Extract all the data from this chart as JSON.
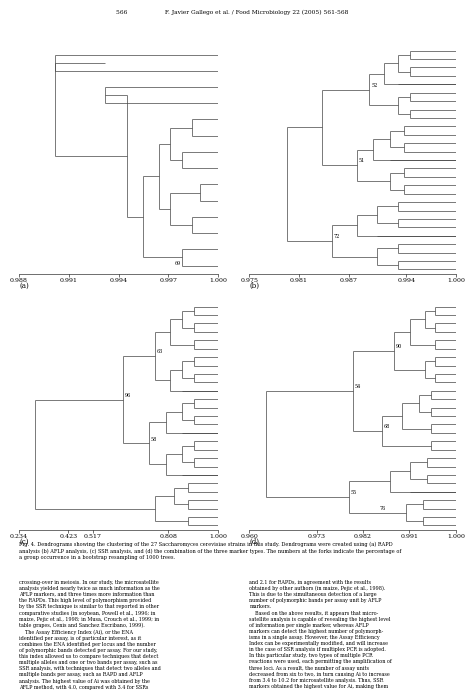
{
  "title_text": "566                    F. Javier Gallego et al. / Food Microbiology 22 (2005) 561-568",
  "caption": "Fig. 4. Dendrograms showing the clustering of the 27 Saccharomyces cerevisiae strains in this study. Dendrograms were created using (a) RAPD\nanalysis (b) AFLP analysis, (c) SSR analysis, and (d) the combination of the three marker types. The numbers at the forks indicate the percentage of\na group occurrence in a bootstrap resampling of 1000 trees.",
  "body_text_left": "crossing-over in meiosis. In our study, the microsatellite\nanalysis yielded nearly twice as much information as the\nAFLP markers, and three times more information than\nthe RAPDs. This high level of polymorphism provided\nby the SSR technique is similar to that reported in other\ncomparative studies (in soybean, Powell et al., 1996; in\nmaize, Pejic et al., 1998; in Musa, Crouch et al., 1999; in\ntable grapes, Cenis and Sanchez Escribano, 1999).\n    The Assay Efficiency Index (Ai), or the ENA\nidentified per assay, is of particular interest, as it\ncombines the ENA identified per locus and the number\nof polymorphic bands detected per assay. For our study,\nthis index allowed us to compare techniques that detect\nmultiple alleles and one or two bands per assay, such as\nSSR analysis, with techniques that detect two alleles and\nmultiple bands per assay, such as RAPD and AFLP\nanalysis. The highest value of Ai was obtained by the\nAFLP method, with 4.0, compared with 3.4 for SSRs",
  "body_text_right": "and 2.1 for RAPDs, in agreement with the results\nobtained by other authors (in maize, Pejic et al., 1998).\nThis is due to the simultaneous detection of a large\nnumber of polymorphic bands per assay unit by AFLP\nmarkers.\n    Based on the above results, it appears that micro-\nsatellite analysis is capable of revealing the highest level\nof information per single marker, whereas AFLP\nmarkers can detect the highest number of polymorph-\nisms in a single assay. However, the Assay Efficiency\nIndex can be experimentally modified, and will increase\nin the case of SSR analysis if multiplex PCR is adopted.\nIn this particular study, two types of multiple PCR\nreactions were used, each permitting the amplification of\nthree loci. As a result, the number of assay units\ndecreased from six to two, in turn causing Ai to increase\nfrom 3.4 to 10.2 for microsatellite analysis. Thus, SSR\nmarkers obtained the highest value for Ai, making them",
  "dendro_a": {
    "label": "(a)",
    "xlim": [
      0.988,
      1.0
    ],
    "xticks": [
      0.988,
      0.991,
      0.994,
      0.997,
      1.0
    ],
    "xticklabels": [
      "0.988",
      "0.991",
      "0.994",
      "0.997",
      "1.000"
    ],
    "n_leaves": 14
  },
  "dendro_b": {
    "label": "(b)",
    "xlim": [
      0.975,
      1.0
    ],
    "xticks": [
      0.975,
      0.981,
      0.987,
      0.994,
      1.0
    ],
    "xticklabels": [
      "0.975",
      "0.981",
      "0.987",
      "0.994",
      "1.000"
    ],
    "n_leaves": 27
  },
  "dendro_c": {
    "label": "(c)",
    "xlim": [
      0.234,
      1.0
    ],
    "xticks": [
      0.234,
      0.423,
      0.517,
      0.808,
      1.0
    ],
    "xticklabels": [
      "0.234",
      "0.423",
      "0.517",
      "0.808",
      "1.000"
    ],
    "n_leaves": 27
  },
  "dendro_d": {
    "label": "(d)",
    "xlim": [
      0.96,
      1.0
    ],
    "xticks": [
      0.96,
      0.973,
      0.982,
      0.991,
      1.0
    ],
    "xticklabels": [
      "0.960",
      "0.973",
      "0.982",
      "0.991",
      "1.000"
    ],
    "n_leaves": 27
  },
  "bg_color": "#ffffff",
  "line_color": "#444444",
  "text_color": "#000000",
  "font_size": 5,
  "axis_font_size": 4.5
}
